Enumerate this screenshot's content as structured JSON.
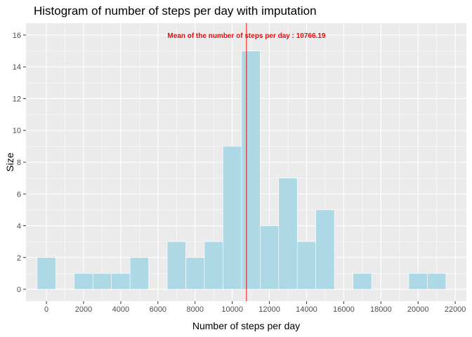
{
  "chart_data": {
    "type": "bar",
    "title": "Histogram of number of steps per day with imputation",
    "xlabel": "Number of steps per day",
    "ylabel": "Size",
    "bin_width": 1000,
    "bins": [
      {
        "x": 0,
        "count": 2
      },
      {
        "x": 2000,
        "count": 1
      },
      {
        "x": 3000,
        "count": 1
      },
      {
        "x": 4000,
        "count": 1
      },
      {
        "x": 5000,
        "count": 2
      },
      {
        "x": 7000,
        "count": 3
      },
      {
        "x": 8000,
        "count": 2
      },
      {
        "x": 9000,
        "count": 3
      },
      {
        "x": 10000,
        "count": 9
      },
      {
        "x": 11000,
        "count": 15
      },
      {
        "x": 12000,
        "count": 4
      },
      {
        "x": 13000,
        "count": 7
      },
      {
        "x": 14000,
        "count": 3
      },
      {
        "x": 15000,
        "count": 5
      },
      {
        "x": 17000,
        "count": 1
      },
      {
        "x": 20000,
        "count": 1
      },
      {
        "x": 21000,
        "count": 1
      }
    ],
    "xlim": [
      -1100,
      22600
    ],
    "ylim": [
      -0.75,
      16.75
    ],
    "xticks": [
      0,
      2000,
      4000,
      6000,
      8000,
      10000,
      12000,
      14000,
      16000,
      18000,
      20000,
      22000
    ],
    "yticks": [
      0,
      2,
      4,
      6,
      8,
      10,
      12,
      14,
      16
    ],
    "mean": 10766.19,
    "annotation": {
      "text": "Mean of the number of steps per day :  10766.19",
      "x": 10766.19,
      "y": 16
    },
    "grid": true,
    "colors": {
      "bar_fill": "#add8e6",
      "bar_stroke": "#ffffff",
      "panel": "#ebebeb",
      "grid": "#ffffff",
      "mean_line": "#ff0000"
    }
  }
}
